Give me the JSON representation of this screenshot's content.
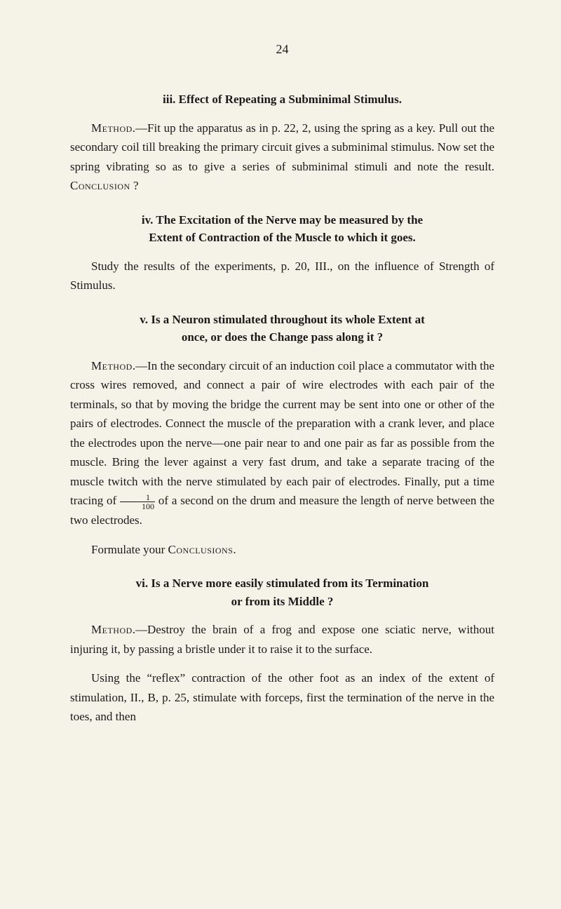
{
  "pageNumber": "24",
  "sections": {
    "iii": {
      "heading": "iii.  Effect of Repeating a Subminimal Stimulus.",
      "para": "Method.—Fit up the apparatus as in p. 22, 2, using the spring as a key. Pull out the secondary coil till breaking the primary circuit gives a subminimal stimulus. Now set the spring vibrating so as to give a series of subminimal stimuli and note the result. Conclusion ?"
    },
    "iv": {
      "heading1": "iv.  The Excitation of the Nerve may be measured by the",
      "heading2": "Extent of Contraction of the Muscle to which it goes.",
      "para": "Study the results of the experiments, p. 20, III., on the influence of Strength of Stimulus."
    },
    "v": {
      "heading1": "v.  Is a Neuron stimulated throughout its whole Extent at",
      "heading2": "once, or does the Change pass along it ?",
      "para1a": "Method",
      "para1b": ".—In the secondary circuit of an induction coil place a commutator with the cross wires removed, and connect a pair of wire electrodes with each pair of the terminals, so that by moving the bridge the current may be sent into one or other of the pairs of electrodes. Connect the muscle of the preparation with a crank lever, and place the electrodes upon the nerve—one pair near to and one pair as far as possible from the muscle. Bring the lever against a very fast drum, and take a separate tracing of the muscle twitch with the nerve stimulated by each pair of electrodes. Finally, put a time tracing of ",
      "frac_num": "1",
      "frac_den": "100",
      "para1c": " of a second on the drum and measure the length of nerve between the two electrodes.",
      "para2a": "Formulate your ",
      "para2b": "Conclusions",
      "para2c": "."
    },
    "vi": {
      "heading1": "vi.  Is a Nerve more easily stimulated from its Termination",
      "heading2": "or from its Middle ?",
      "para1a": "Method",
      "para1b": ".—Destroy the brain of a frog and expose one sciatic nerve, without injuring it, by passing a bristle under it to raise it to the surface.",
      "para2": "Using the “reflex” contraction of the other foot as an index of the extent of stimulation, II., B, p. 25, stimulate with forceps, first the termination of the nerve in the toes, and then"
    }
  },
  "colors": {
    "background": "#f5f3e8",
    "text": "#1a1a1a"
  }
}
